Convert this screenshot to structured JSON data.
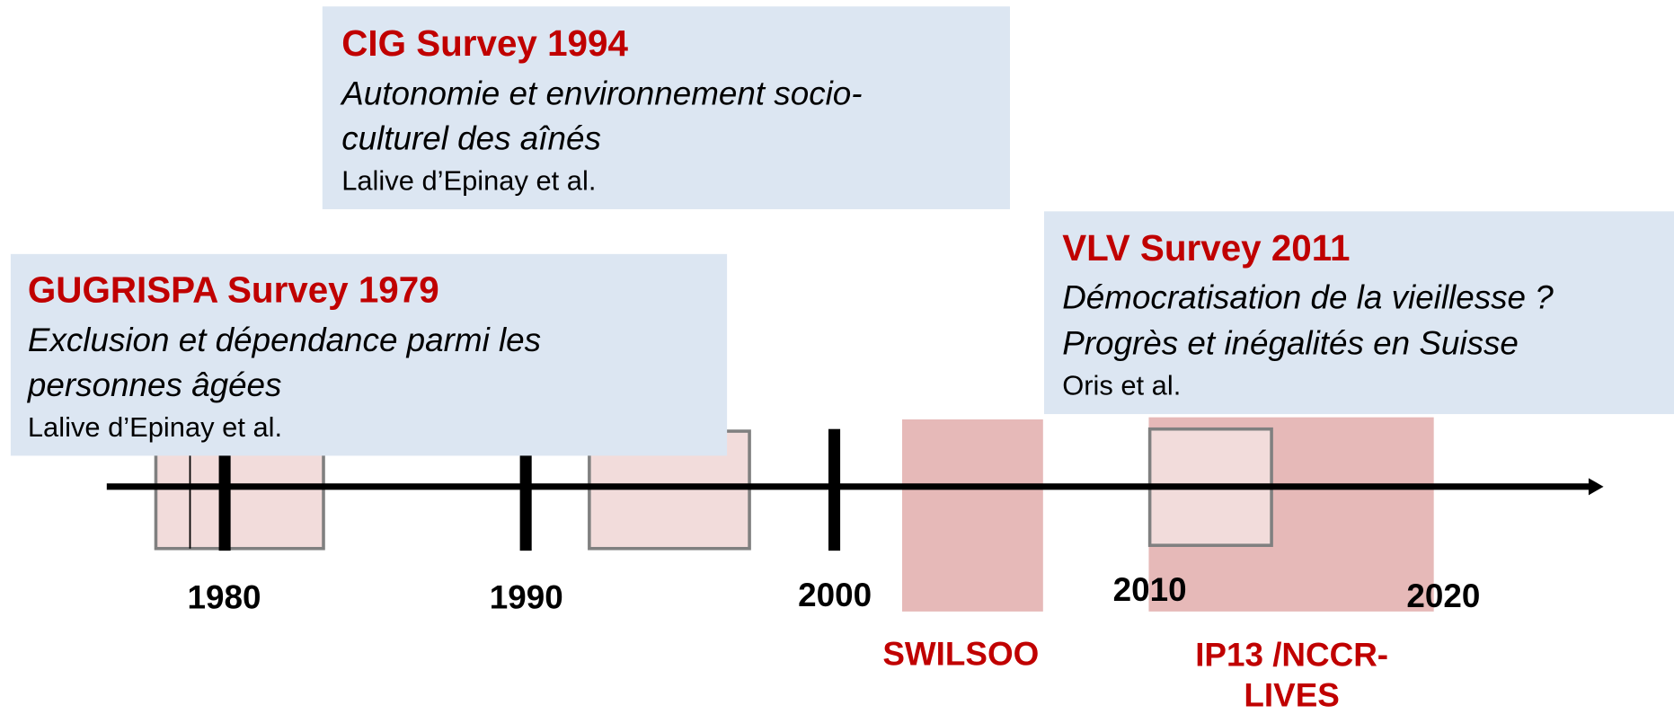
{
  "surveys": [
    {
      "title": "CIG Survey 1994",
      "subtitle": [
        "Autonomie et environnement socio-",
        "culturel des aînés"
      ],
      "authors": "Lalive d’Epinay et al."
    },
    {
      "title": "GUGRISPA Survey 1979",
      "subtitle": [
        "Exclusion et dépendance parmi les",
        "personnes âgées"
      ],
      "authors": "Lalive d’Epinay et al."
    },
    {
      "title": "VLV Survey 2011",
      "subtitle": [
        "Démocratisation de la vieillesse ?",
        "Progrès et  inégalités en Suisse"
      ],
      "authors": "Oris et al."
    }
  ],
  "timeline": {
    "ticks": [
      "1980",
      "1990",
      "2000",
      "2010",
      "2020"
    ]
  },
  "projects": [
    {
      "lines": [
        "SWILSOO"
      ]
    },
    {
      "lines": [
        "IP13 /NCCR-",
        "LIVES"
      ]
    }
  ]
}
